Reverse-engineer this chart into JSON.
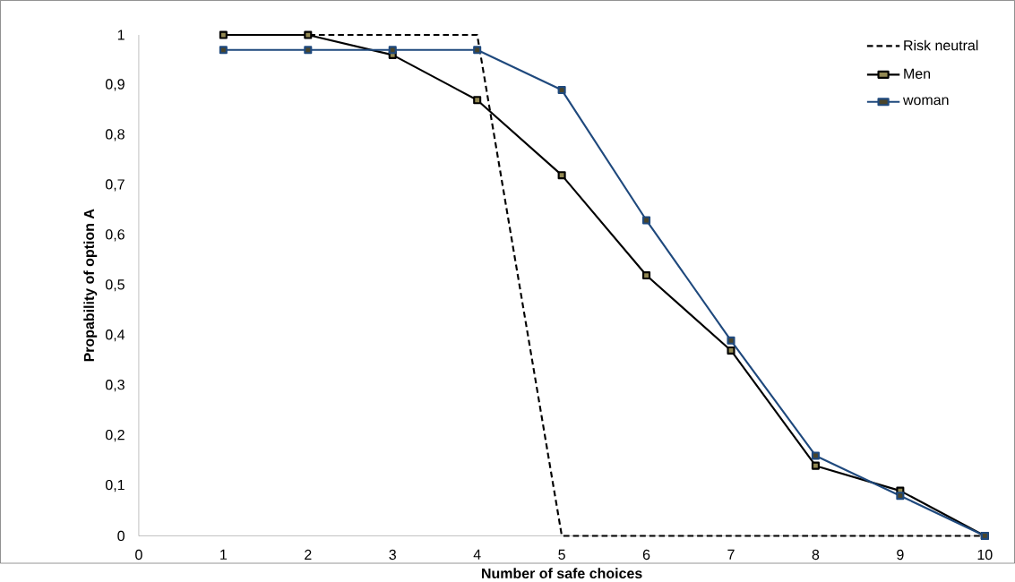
{
  "chart_data": {
    "type": "line",
    "xlabel": "Number of safe choices",
    "ylabel": "Propability of option A",
    "x": [
      1,
      2,
      3,
      4,
      5,
      6,
      7,
      8,
      9,
      10
    ],
    "series": [
      {
        "name": "Risk neutral",
        "color": "#000000",
        "line_style": "dashed",
        "marker": "none",
        "values": [
          1,
          1,
          1,
          1,
          0,
          0,
          0,
          0,
          0,
          0
        ]
      },
      {
        "name": "Men",
        "color": "#000000",
        "line_style": "solid",
        "marker": "square",
        "values": [
          1,
          1,
          0.96,
          0.87,
          0.72,
          0.52,
          0.37,
          0.14,
          0.09,
          0
        ]
      },
      {
        "name": "woman",
        "color": "#1f497d",
        "line_style": "solid",
        "marker": "square",
        "values": [
          0.97,
          0.97,
          0.97,
          0.97,
          0.89,
          0.63,
          0.39,
          0.16,
          0.08,
          0
        ]
      }
    ],
    "xlim": [
      0,
      10
    ],
    "ylim": [
      0,
      1
    ],
    "xticks": [
      0,
      1,
      2,
      3,
      4,
      5,
      6,
      7,
      8,
      9,
      10
    ],
    "yticks": [
      0,
      {
        "value": 0.1,
        "label": "0,1"
      },
      {
        "value": 0.2,
        "label": "0,2"
      },
      {
        "value": 0.3,
        "label": "0,3"
      },
      {
        "value": 0.4,
        "label": "0,4"
      },
      {
        "value": 0.5,
        "label": "0,5"
      },
      {
        "value": 0.6,
        "label": "0,6"
      },
      {
        "value": 0.7,
        "label": "0,7"
      },
      {
        "value": 0.8,
        "label": "0,8"
      },
      {
        "value": 0.9,
        "label": "0,9"
      },
      1
    ],
    "grid": false,
    "legend": "top right"
  }
}
